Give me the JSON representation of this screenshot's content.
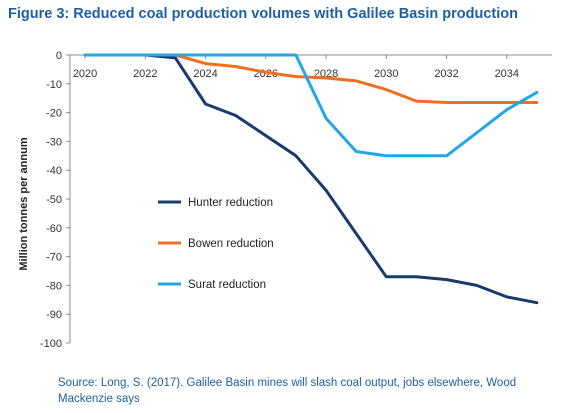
{
  "figure_title": "Figure 3: Reduced coal production volumes with Galilee Basin production",
  "source_note": "Source: Long, S. (2017). Galilee Basin mines will slash coal output, jobs elsewhere, Wood Mackenzie says",
  "chart_data": {
    "type": "line",
    "ylabel": "Million tonnes per annum",
    "xlabel": "",
    "xlim": [
      2019.5,
      2035.5
    ],
    "ylim": [
      -100,
      0
    ],
    "x_ticks": [
      2020,
      2022,
      2024,
      2026,
      2028,
      2030,
      2032,
      2034
    ],
    "y_ticks": [
      0,
      -10,
      -20,
      -30,
      -40,
      -50,
      -60,
      -70,
      -80,
      -90,
      -100
    ],
    "x_tick_position": "top",
    "grid": false,
    "legend_position": "center-left",
    "series": [
      {
        "name": "Hunter reduction",
        "color": "#1a3a6e",
        "x": [
          2020,
          2021,
          2022,
          2023,
          2024,
          2025,
          2026,
          2027,
          2028,
          2029,
          2030,
          2031,
          2032,
          2033,
          2034,
          2035
        ],
        "values": [
          0,
          0,
          0,
          -1,
          -17,
          -21,
          -28,
          -35,
          -47,
          -62,
          -77,
          -77,
          -78,
          -80,
          -84,
          -86
        ]
      },
      {
        "name": "Bowen reduction",
        "color": "#f07020",
        "x": [
          2020,
          2021,
          2022,
          2023,
          2024,
          2025,
          2026,
          2027,
          2028,
          2029,
          2030,
          2031,
          2032,
          2033,
          2034,
          2035
        ],
        "values": [
          0,
          0,
          0,
          0,
          -3,
          -4,
          -6,
          -7.5,
          -8,
          -9,
          -12,
          -16,
          -16.5,
          -16.5,
          -16.5,
          -16.5
        ]
      },
      {
        "name": "Surat reduction",
        "color": "#22a6e8",
        "x": [
          2020,
          2021,
          2022,
          2023,
          2024,
          2025,
          2026,
          2027,
          2028,
          2029,
          2030,
          2031,
          2032,
          2033,
          2034,
          2035
        ],
        "values": [
          0,
          0,
          0,
          0,
          0,
          0,
          0,
          0,
          -22,
          -33.5,
          -35,
          -35,
          -35,
          -27,
          -19,
          -13
        ]
      }
    ]
  }
}
